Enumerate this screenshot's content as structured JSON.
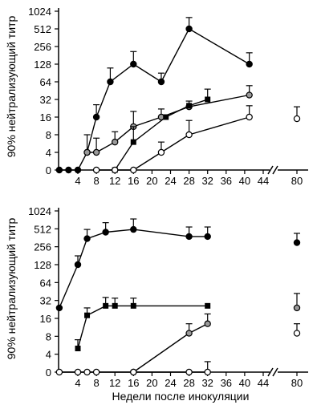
{
  "ylabel": "90% нейтрализующий титр",
  "xlabel": "Недели после инокуляции",
  "chart_data": [
    {
      "type": "line",
      "panel": "top",
      "yscale": "log2",
      "y_ticks": [
        "0",
        "4",
        "8",
        "16",
        "32",
        "64",
        "128",
        "256",
        "512",
        "1024"
      ],
      "y_tick_values": [
        0,
        4,
        8,
        16,
        32,
        64,
        128,
        256,
        512,
        1024
      ],
      "x_ticks": [
        "4",
        "8",
        "12",
        "16",
        "20",
        "24",
        "28",
        "32",
        "36",
        "40",
        "44",
        "80"
      ],
      "x_axis_break": "between 44 and 80",
      "series": [
        {
          "marker": "filled-circle",
          "points": [
            {
              "x": 0,
              "y": 0
            },
            {
              "x": 2,
              "y": 0
            },
            {
              "x": 4,
              "y": 0
            },
            {
              "x": 6,
              "y": 4,
              "err": 8
            },
            {
              "x": 8,
              "y": 16,
              "err": 26
            },
            {
              "x": 11,
              "y": 64,
              "err": 110
            },
            {
              "x": 16,
              "y": 128,
              "err": 210
            },
            {
              "x": 22,
              "y": 64,
              "err": 90
            },
            {
              "x": 28,
              "y": 512,
              "err": 800
            },
            {
              "x": 41,
              "y": 128,
              "err": 200
            }
          ]
        },
        {
          "marker": "grey-circle",
          "points": [
            {
              "x": 6,
              "y": 4
            },
            {
              "x": 8,
              "y": 4,
              "err": 7
            },
            {
              "x": 12,
              "y": 6,
              "err": 9
            },
            {
              "x": 16,
              "y": 11,
              "err": 20
            },
            {
              "x": 22,
              "y": 16,
              "err": 22
            },
            {
              "x": 28,
              "y": 24,
              "err": 30
            },
            {
              "x": 41,
              "y": 38,
              "err": 55
            }
          ]
        },
        {
          "marker": "filled-square",
          "points": [
            {
              "x": 12,
              "y": 0
            },
            {
              "x": 16,
              "y": 6,
              "err": 11
            },
            {
              "x": 23,
              "y": 16
            },
            {
              "x": 28,
              "y": 25
            },
            {
              "x": 32,
              "y": 32,
              "err": 48
            }
          ]
        },
        {
          "marker": "open-circle",
          "points": [
            {
              "x": 8,
              "y": 0
            },
            {
              "x": 12,
              "y": 0
            },
            {
              "x": 16,
              "y": 2
            },
            {
              "x": 22,
              "y": 4,
              "err": 6
            },
            {
              "x": 28,
              "y": 8,
              "err": 14
            },
            {
              "x": 41,
              "y": 16,
              "err": 25
            },
            {
              "x": 80,
              "y": 15,
              "err": 24
            }
          ]
        }
      ]
    },
    {
      "type": "line",
      "panel": "bottom",
      "yscale": "log2",
      "y_ticks": [
        "0",
        "4",
        "8",
        "16",
        "32",
        "64",
        "128",
        "256",
        "512",
        "1024"
      ],
      "y_tick_values": [
        0,
        4,
        8,
        16,
        32,
        64,
        128,
        256,
        512,
        1024
      ],
      "x_ticks": [
        "4",
        "8",
        "12",
        "16",
        "20",
        "24",
        "28",
        "32",
        "36",
        "40",
        "44",
        "80"
      ],
      "x_axis_break": "between 44 and 80",
      "series": [
        {
          "marker": "filled-circle",
          "points": [
            {
              "x": 0,
              "y": 24
            },
            {
              "x": 4,
              "y": 128,
              "err": 180
            },
            {
              "x": 6,
              "y": 350,
              "err": 500
            },
            {
              "x": 10,
              "y": 450,
              "err": 650
            },
            {
              "x": 16,
              "y": 500,
              "err": 750
            },
            {
              "x": 28,
              "y": 380,
              "err": 550
            },
            {
              "x": 32,
              "y": 380,
              "err": 550
            },
            {
              "x": 80,
              "y": 300,
              "err": 430
            }
          ]
        },
        {
          "marker": "filled-square",
          "points": [
            {
              "x": 4,
              "y": 5,
              "err": 7
            },
            {
              "x": 6,
              "y": 18,
              "err": 24
            },
            {
              "x": 10,
              "y": 26,
              "err": 36
            },
            {
              "x": 12,
              "y": 26,
              "err": 35
            },
            {
              "x": 16,
              "y": 26,
              "err": 35
            },
            {
              "x": 32,
              "y": 26
            }
          ]
        },
        {
          "marker": "grey-circle",
          "points": [
            {
              "x": 16,
              "y": 0
            },
            {
              "x": 28,
              "y": 9,
              "err": 13
            },
            {
              "x": 32,
              "y": 13,
              "err": 19
            },
            {
              "x": 80,
              "y": 24,
              "err": 42
            }
          ]
        },
        {
          "marker": "open-circle",
          "points": [
            {
              "x": 0,
              "y": 0
            },
            {
              "x": 4,
              "y": 0
            },
            {
              "x": 6,
              "y": 0
            },
            {
              "x": 8,
              "y": 0
            },
            {
              "x": 16,
              "y": 0
            },
            {
              "x": 28,
              "y": 0,
              "err": 2
            },
            {
              "x": 32,
              "y": 0,
              "err": 3
            },
            {
              "x": 80,
              "y": 9,
              "err": 13
            }
          ]
        }
      ]
    }
  ]
}
